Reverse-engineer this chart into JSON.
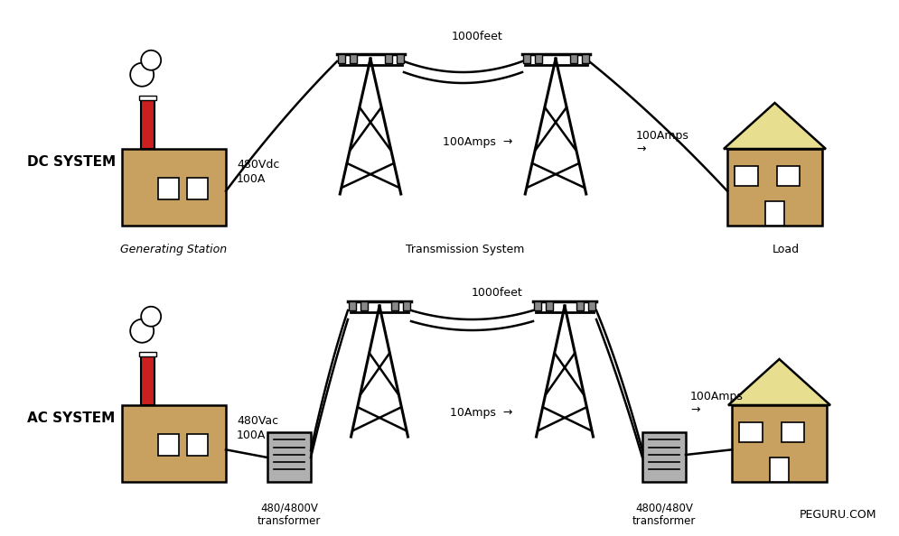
{
  "background_color": "#ffffff",
  "dc_label": "DC SYSTEM",
  "ac_label": "AC SYSTEM",
  "gen_station_label": "Generating Station",
  "transmission_label": "Transmission System",
  "load_label": "Load",
  "dc_voltage": "480Vdc\n100A",
  "ac_voltage": "480Vac\n100A",
  "dc_amps_mid": "100Amps  →",
  "dc_amps_right": "100Amps\n→",
  "ac_amps_mid": "10Amps  →",
  "ac_amps_right": "100Amps\n→",
  "dc_feet": "1000feet",
  "ac_feet": "1000feet",
  "transformer1_label": "480/4800V\ntransformer",
  "transformer2_label": "4800/480V\ntransformer",
  "peguru": "PEGURU.COM",
  "factory_color": "#c8a060",
  "house_roof_dc": "#e8de90",
  "house_wall_dc": "#c8a060",
  "house_roof_ac": "#e8de90",
  "house_wall_ac": "#c8a060",
  "chimney_color": "#cc2020",
  "transformer_color": "#b0b0b0",
  "window_color": "#ffffff",
  "line_color": "#000000",
  "insulator_color": "#888888"
}
